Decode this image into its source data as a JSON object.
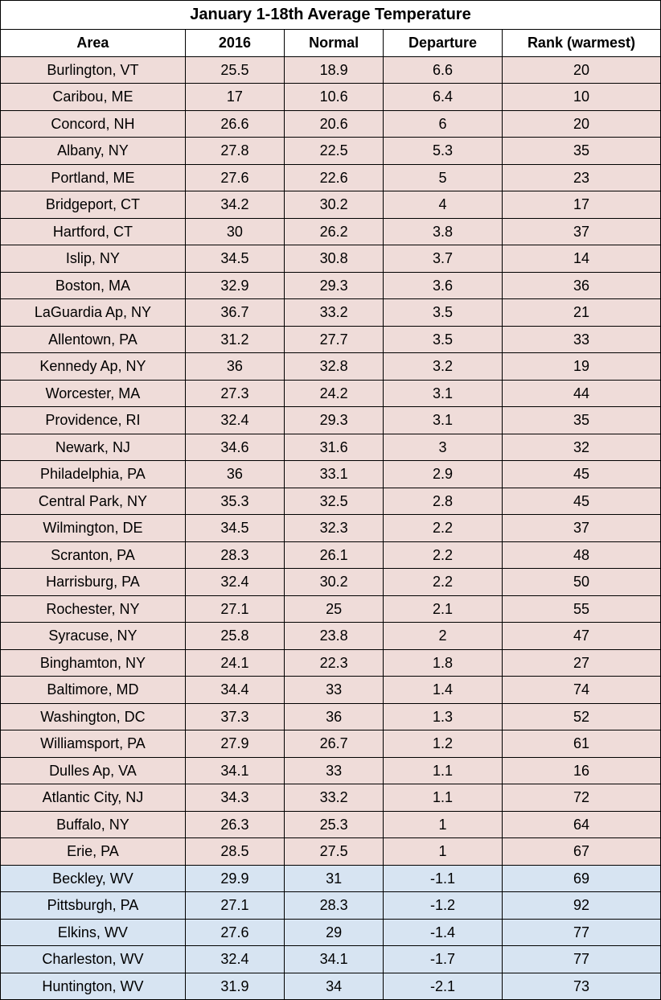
{
  "table": {
    "title": "January 1-18th Average Temperature",
    "columns": [
      "Area",
      "2016",
      "Normal",
      "Departure",
      "Rank (warmest)"
    ],
    "colors": {
      "warm_row_bg": "#efdcd9",
      "cold_row_bg": "#d7e4f2",
      "header_bg": "#ffffff",
      "border": "#000000",
      "text": "#000000"
    },
    "column_widths_pct": [
      28,
      15,
      15,
      18,
      24
    ],
    "font": {
      "family": "Arial",
      "title_size_pt": 20,
      "header_size_pt": 18,
      "cell_size_pt": 18,
      "title_weight": "700",
      "header_weight": "700",
      "cell_weight": "400"
    },
    "rows": [
      {
        "area": "Burlington, VT",
        "y2016": "25.5",
        "normal": "18.9",
        "departure": "6.6",
        "rank": "20",
        "group": "warm"
      },
      {
        "area": "Caribou, ME",
        "y2016": "17",
        "normal": "10.6",
        "departure": "6.4",
        "rank": "10",
        "group": "warm"
      },
      {
        "area": "Concord, NH",
        "y2016": "26.6",
        "normal": "20.6",
        "departure": "6",
        "rank": "20",
        "group": "warm"
      },
      {
        "area": "Albany, NY",
        "y2016": "27.8",
        "normal": "22.5",
        "departure": "5.3",
        "rank": "35",
        "group": "warm"
      },
      {
        "area": "Portland, ME",
        "y2016": "27.6",
        "normal": "22.6",
        "departure": "5",
        "rank": "23",
        "group": "warm"
      },
      {
        "area": "Bridgeport, CT",
        "y2016": "34.2",
        "normal": "30.2",
        "departure": "4",
        "rank": "17",
        "group": "warm"
      },
      {
        "area": "Hartford, CT",
        "y2016": "30",
        "normal": "26.2",
        "departure": "3.8",
        "rank": "37",
        "group": "warm"
      },
      {
        "area": "Islip, NY",
        "y2016": "34.5",
        "normal": "30.8",
        "departure": "3.7",
        "rank": "14",
        "group": "warm"
      },
      {
        "area": "Boston, MA",
        "y2016": "32.9",
        "normal": "29.3",
        "departure": "3.6",
        "rank": "36",
        "group": "warm"
      },
      {
        "area": "LaGuardia Ap, NY",
        "y2016": "36.7",
        "normal": "33.2",
        "departure": "3.5",
        "rank": "21",
        "group": "warm"
      },
      {
        "area": "Allentown, PA",
        "y2016": "31.2",
        "normal": "27.7",
        "departure": "3.5",
        "rank": "33",
        "group": "warm"
      },
      {
        "area": "Kennedy Ap, NY",
        "y2016": "36",
        "normal": "32.8",
        "departure": "3.2",
        "rank": "19",
        "group": "warm"
      },
      {
        "area": "Worcester, MA",
        "y2016": "27.3",
        "normal": "24.2",
        "departure": "3.1",
        "rank": "44",
        "group": "warm"
      },
      {
        "area": "Providence, RI",
        "y2016": "32.4",
        "normal": "29.3",
        "departure": "3.1",
        "rank": "35",
        "group": "warm"
      },
      {
        "area": "Newark, NJ",
        "y2016": "34.6",
        "normal": "31.6",
        "departure": "3",
        "rank": "32",
        "group": "warm"
      },
      {
        "area": "Philadelphia, PA",
        "y2016": "36",
        "normal": "33.1",
        "departure": "2.9",
        "rank": "45",
        "group": "warm"
      },
      {
        "area": "Central Park, NY",
        "y2016": "35.3",
        "normal": "32.5",
        "departure": "2.8",
        "rank": "45",
        "group": "warm"
      },
      {
        "area": "Wilmington, DE",
        "y2016": "34.5",
        "normal": "32.3",
        "departure": "2.2",
        "rank": "37",
        "group": "warm"
      },
      {
        "area": "Scranton, PA",
        "y2016": "28.3",
        "normal": "26.1",
        "departure": "2.2",
        "rank": "48",
        "group": "warm"
      },
      {
        "area": "Harrisburg, PA",
        "y2016": "32.4",
        "normal": "30.2",
        "departure": "2.2",
        "rank": "50",
        "group": "warm"
      },
      {
        "area": "Rochester, NY",
        "y2016": "27.1",
        "normal": "25",
        "departure": "2.1",
        "rank": "55",
        "group": "warm"
      },
      {
        "area": "Syracuse, NY",
        "y2016": "25.8",
        "normal": "23.8",
        "departure": "2",
        "rank": "47",
        "group": "warm"
      },
      {
        "area": "Binghamton, NY",
        "y2016": "24.1",
        "normal": "22.3",
        "departure": "1.8",
        "rank": "27",
        "group": "warm"
      },
      {
        "area": "Baltimore, MD",
        "y2016": "34.4",
        "normal": "33",
        "departure": "1.4",
        "rank": "74",
        "group": "warm"
      },
      {
        "area": "Washington, DC",
        "y2016": "37.3",
        "normal": "36",
        "departure": "1.3",
        "rank": "52",
        "group": "warm"
      },
      {
        "area": "Williamsport, PA",
        "y2016": "27.9",
        "normal": "26.7",
        "departure": "1.2",
        "rank": "61",
        "group": "warm"
      },
      {
        "area": "Dulles Ap, VA",
        "y2016": "34.1",
        "normal": "33",
        "departure": "1.1",
        "rank": "16",
        "group": "warm"
      },
      {
        "area": "Atlantic City, NJ",
        "y2016": "34.3",
        "normal": "33.2",
        "departure": "1.1",
        "rank": "72",
        "group": "warm"
      },
      {
        "area": "Buffalo, NY",
        "y2016": "26.3",
        "normal": "25.3",
        "departure": "1",
        "rank": "64",
        "group": "warm"
      },
      {
        "area": "Erie, PA",
        "y2016": "28.5",
        "normal": "27.5",
        "departure": "1",
        "rank": "67",
        "group": "warm"
      },
      {
        "area": "Beckley, WV",
        "y2016": "29.9",
        "normal": "31",
        "departure": "-1.1",
        "rank": "69",
        "group": "cold"
      },
      {
        "area": "Pittsburgh, PA",
        "y2016": "27.1",
        "normal": "28.3",
        "departure": "-1.2",
        "rank": "92",
        "group": "cold"
      },
      {
        "area": "Elkins, WV",
        "y2016": "27.6",
        "normal": "29",
        "departure": "-1.4",
        "rank": "77",
        "group": "cold"
      },
      {
        "area": "Charleston, WV",
        "y2016": "32.4",
        "normal": "34.1",
        "departure": "-1.7",
        "rank": "77",
        "group": "cold"
      },
      {
        "area": "Huntington, WV",
        "y2016": "31.9",
        "normal": "34",
        "departure": "-2.1",
        "rank": "73",
        "group": "cold"
      }
    ]
  }
}
